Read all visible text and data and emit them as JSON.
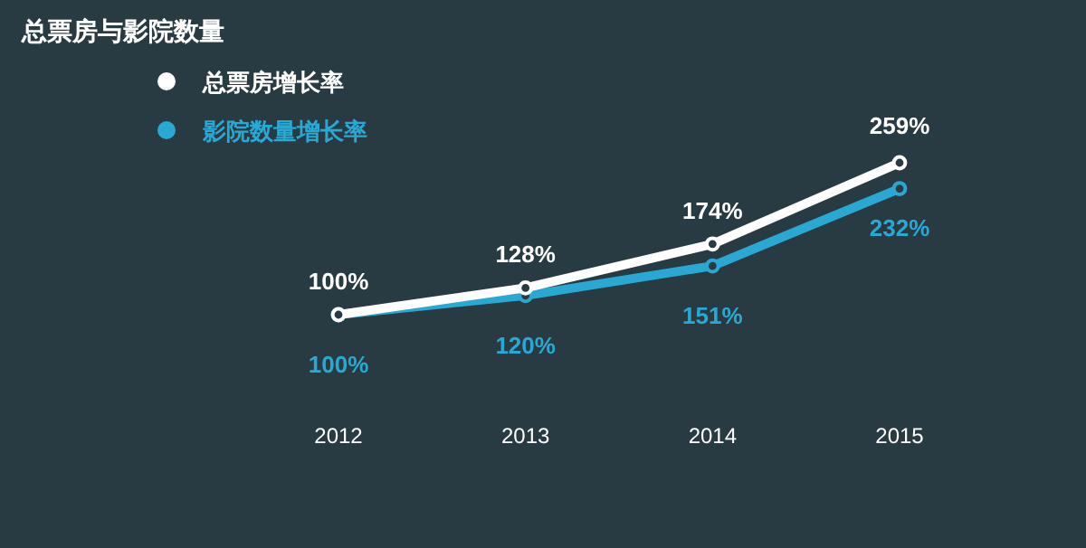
{
  "chart_data": {
    "type": "line",
    "title": "总票房与影院数量",
    "categories": [
      "2012",
      "2013",
      "2014",
      "2015"
    ],
    "legend": "top left",
    "marker": "circle",
    "data_labels": true,
    "series": [
      {
        "name": "总票房增长率",
        "color": "#ffffff",
        "values": [
          100,
          128,
          174,
          259
        ],
        "value_labels": [
          "100%",
          "128%",
          "174%",
          "259%"
        ]
      },
      {
        "name": "影院数量增长率",
        "color": "#2aa8d4",
        "values": [
          100,
          120,
          151,
          232
        ],
        "value_labels": [
          "100%",
          "120%",
          "151%",
          "232%"
        ]
      }
    ]
  }
}
